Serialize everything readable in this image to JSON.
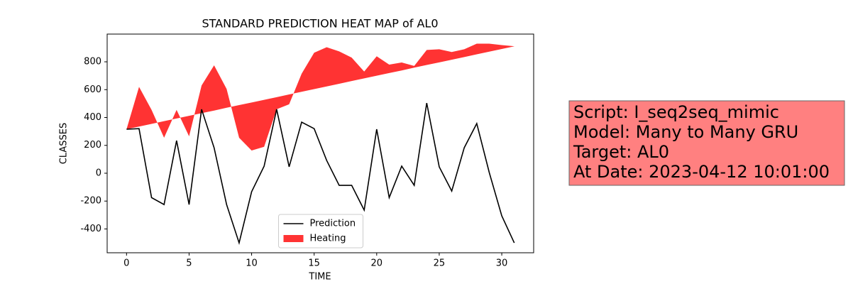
{
  "chart_data": {
    "type": "line",
    "title": "STANDARD PREDICTION HEAT MAP of AL0",
    "xlabel": "TIME",
    "ylabel": "CLASSES",
    "x": [
      0,
      1,
      2,
      3,
      4,
      5,
      6,
      7,
      8,
      9,
      10,
      11,
      12,
      13,
      14,
      15,
      16,
      17,
      18,
      19,
      20,
      21,
      22,
      23,
      24,
      25,
      26,
      27,
      28,
      29,
      30,
      31
    ],
    "series": [
      {
        "name": "Prediction",
        "type": "line",
        "color": "#000000",
        "values": [
          316,
          320,
          -175,
          -225,
          234,
          -225,
          459,
          183,
          -225,
          -500,
          -133,
          51,
          459,
          46,
          367,
          320,
          92,
          -87,
          -87,
          -265,
          316,
          -175,
          51,
          -87,
          504,
          46,
          -128,
          183,
          357,
          5,
          -306,
          -500
        ]
      },
      {
        "name": "Heating",
        "type": "fill_between",
        "color": "#ff0000",
        "alpha": 0.8,
        "values": [
          316,
          620,
          455,
          255,
          455,
          265,
          630,
          775,
          605,
          255,
          163,
          190,
          459,
          495,
          715,
          865,
          905,
          875,
          830,
          730,
          840,
          780,
          795,
          770,
          885,
          890,
          870,
          890,
          930,
          930,
          920,
          912
        ],
        "base": [
          316,
          335,
          354,
          374,
          393,
          412,
          431,
          450,
          470,
          489,
          508,
          527,
          546,
          566,
          585,
          604,
          623,
          642,
          662,
          681,
          700,
          719,
          738,
          758,
          777,
          796,
          815,
          834,
          854,
          873,
          892,
          911
        ]
      }
    ],
    "xlim": [
      -1.55,
      32.55
    ],
    "ylim": [
      -571,
      999
    ],
    "xticks": [
      0,
      5,
      10,
      15,
      20,
      25,
      30
    ],
    "yticks": [
      -400,
      -200,
      0,
      200,
      400,
      600,
      800
    ],
    "legend": "lower center",
    "annotation": [
      "Script: I_seq2seq_mimic",
      "Model: Many to Many GRU",
      "Target: AL0",
      "At Date: 2023-04-12 10:01:00"
    ],
    "annotation_color": "#ff8080"
  }
}
